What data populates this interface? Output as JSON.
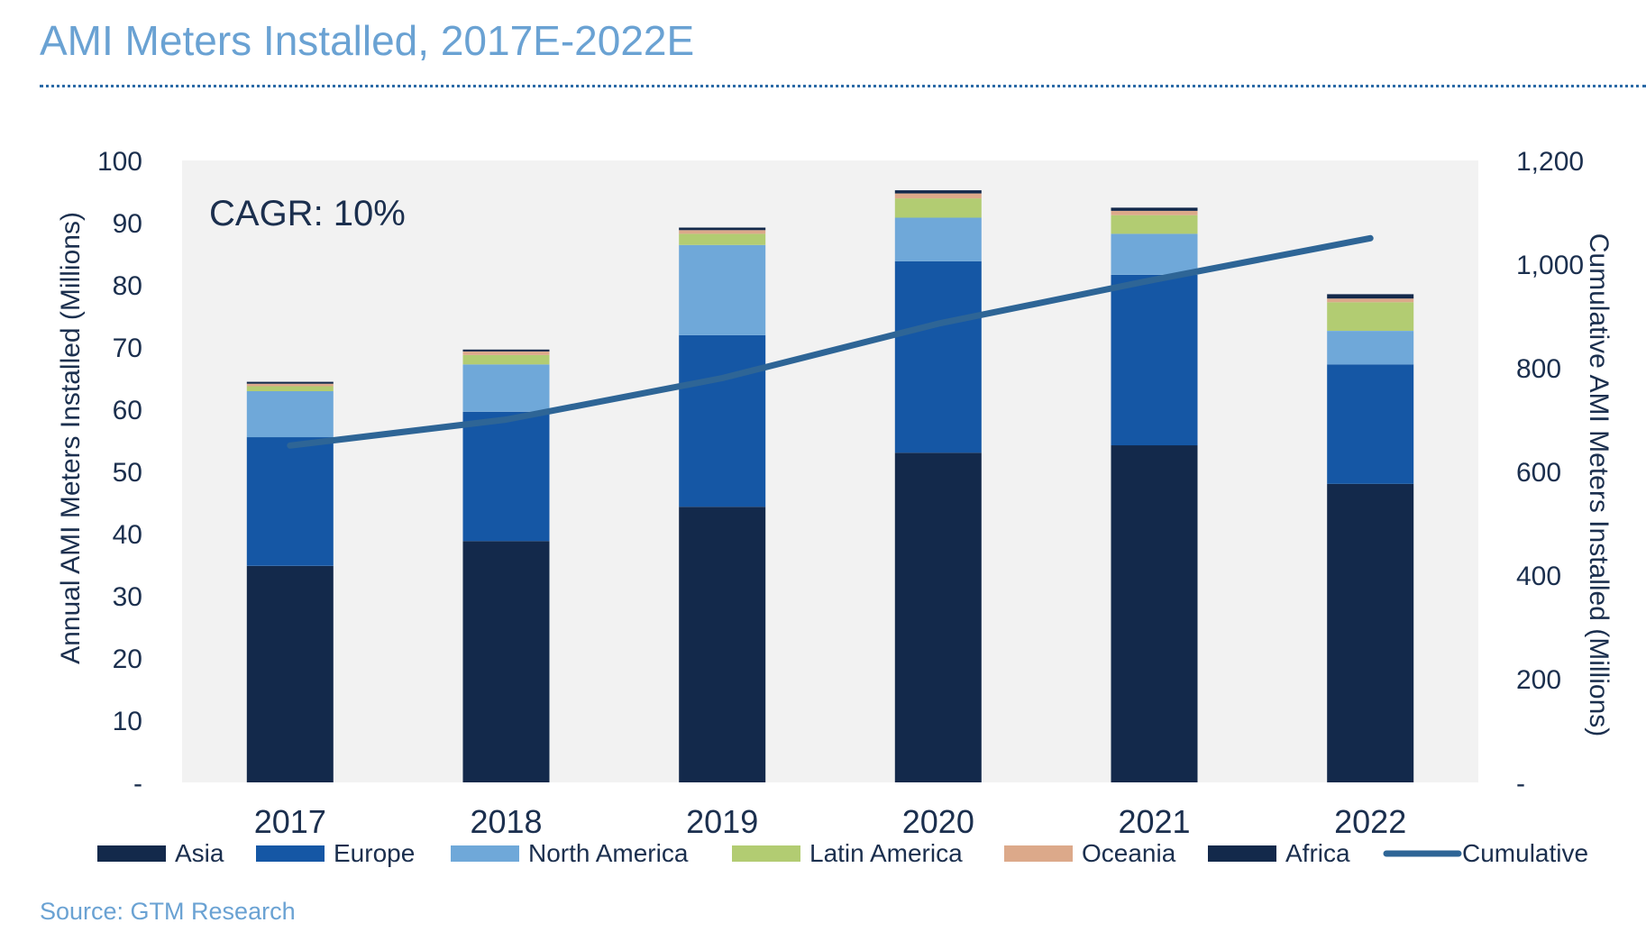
{
  "page": {
    "title": "AMI Meters Installed, 2017E-2022E",
    "source": "Source: GTM Research"
  },
  "chart_data": {
    "type": "bar",
    "stacked": true,
    "categories": [
      "2017",
      "2018",
      "2019",
      "2020",
      "2021",
      "2022"
    ],
    "series": [
      {
        "name": "Asia",
        "values": [
          34.8,
          38.8,
          44.3,
          53.0,
          54.2,
          48.0
        ],
        "color": "#13294b"
      },
      {
        "name": "Europe",
        "values": [
          20.7,
          20.8,
          27.6,
          30.8,
          27.4,
          19.2
        ],
        "color": "#1557a5"
      },
      {
        "name": "North America",
        "values": [
          7.4,
          7.6,
          14.5,
          7.0,
          6.6,
          5.4
        ],
        "color": "#6fa8d9"
      },
      {
        "name": "Latin America",
        "values": [
          0.8,
          1.5,
          1.8,
          3.1,
          3.0,
          4.6
        ],
        "color": "#b2cc72"
      },
      {
        "name": "Oceania",
        "values": [
          0.4,
          0.6,
          0.6,
          0.8,
          0.7,
          0.6
        ],
        "color": "#dca98a"
      },
      {
        "name": "Africa",
        "values": [
          0.3,
          0.3,
          0.4,
          0.5,
          0.5,
          0.7
        ],
        "color": "#13294b"
      }
    ],
    "line_series": {
      "name": "Cumulative",
      "axis": "right",
      "values": [
        650,
        700,
        780,
        885,
        970,
        1050
      ],
      "color": "#2e6596"
    },
    "y_left": {
      "label": "Annual AMI Meters Installed (Millions)",
      "range": [
        0,
        100
      ],
      "tick_values": [
        0,
        10,
        20,
        30,
        40,
        50,
        60,
        70,
        80,
        90,
        100
      ],
      "tick_labels": [
        "-",
        "10",
        "20",
        "30",
        "40",
        "50",
        "60",
        "70",
        "80",
        "90",
        "100"
      ]
    },
    "y_right": {
      "label": "Cumulative AMI Meters Installed (Millions)",
      "range": [
        0,
        1200
      ],
      "tick_values": [
        0,
        200,
        400,
        600,
        800,
        1000,
        1200
      ],
      "tick_labels": [
        "-",
        "200",
        "400",
        "600",
        "800",
        "1,000",
        "1,200"
      ]
    },
    "annotation": "CAGR: 10%",
    "legend_position": "bottom",
    "grid": false,
    "plot_background": "#f2f2f2"
  }
}
